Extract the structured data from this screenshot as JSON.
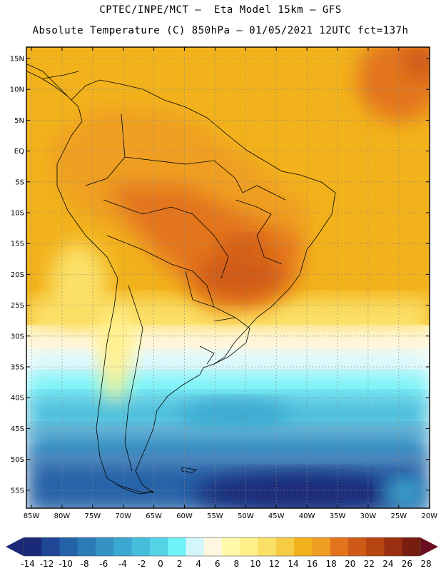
{
  "header": {
    "line1": "CPTEC/INPE/MCT –  Eta Model 15km – GFS",
    "line2": "Absolute Temperature (C) 850hPa – 01/05/2021 12UTC fct=137h"
  },
  "axes": {
    "lat_labels": [
      "15N",
      "10N",
      "5N",
      "EQ",
      "5S",
      "10S",
      "15S",
      "20S",
      "25S",
      "30S",
      "35S",
      "40S",
      "45S",
      "50S",
      "55S"
    ],
    "lon_labels": [
      "85W",
      "80W",
      "75W",
      "70W",
      "65W",
      "60W",
      "55W",
      "50W",
      "45W",
      "40W",
      "35W",
      "30W",
      "25W",
      "20W"
    ]
  },
  "colorbar": {
    "labels": [
      "-14",
      "-12",
      "-10",
      "-8",
      "-6",
      "-4",
      "-2",
      "0",
      "2",
      "4",
      "6",
      "8",
      "10",
      "12",
      "14",
      "16",
      "18",
      "20",
      "22",
      "24",
      "26",
      "28"
    ],
    "colors": [
      "#1a2a78",
      "#1f4796",
      "#2563a8",
      "#2b7bb7",
      "#3592c4",
      "#3aa8d0",
      "#45bedc",
      "#55d3e6",
      "#6df2f7",
      "#d3f6fb",
      "#fff7df",
      "#fffaa8",
      "#fff08a",
      "#fbe068",
      "#f6cc44",
      "#f2b21c",
      "#ef9f22",
      "#e3741e",
      "#cf5a17",
      "#b74511",
      "#992f10",
      "#781e0e"
    ],
    "low_arrow_color": "#1a2a78",
    "high_arrow_color": "#6a0e22"
  }
}
